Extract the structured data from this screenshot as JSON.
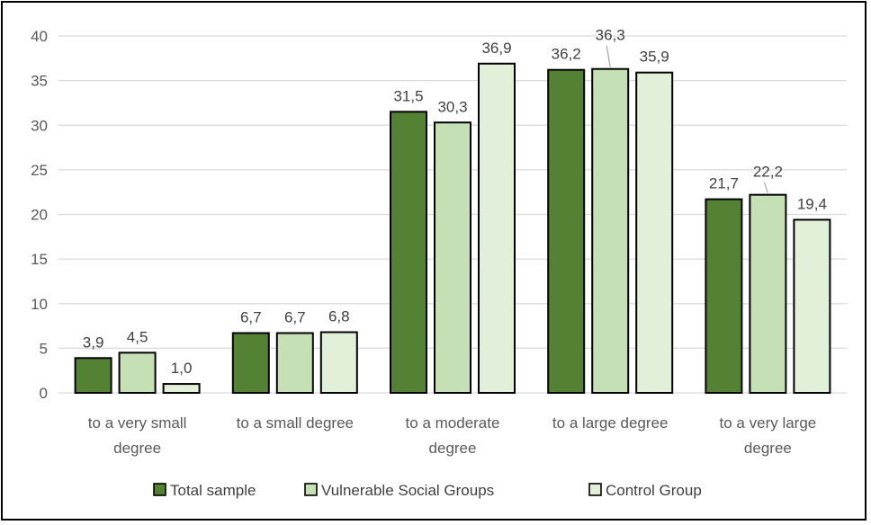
{
  "chart_data": {
    "type": "bar",
    "title": "",
    "xlabel": "",
    "ylabel": "",
    "ylim": [
      0,
      40
    ],
    "yticks": [
      0,
      5,
      10,
      15,
      20,
      25,
      30,
      35,
      40
    ],
    "grid": true,
    "legend_position": "bottom",
    "categories": [
      [
        "to a very small",
        "degree"
      ],
      [
        "to a small degree"
      ],
      [
        "to a moderate",
        "degree"
      ],
      [
        "to a large degree"
      ],
      [
        "to a very large",
        "degree"
      ]
    ],
    "series": [
      {
        "name": "Total sample",
        "color": "#548235",
        "values": [
          3.9,
          6.7,
          31.5,
          36.2,
          21.7
        ],
        "labels": [
          "3,9",
          "6,7",
          "31,5",
          "36,2",
          "21,7"
        ]
      },
      {
        "name": "Vulnerable Social Groups",
        "color": "#c5e0b4",
        "values": [
          4.5,
          6.7,
          30.3,
          36.3,
          22.2
        ],
        "labels": [
          "4,5",
          "6,7",
          "30,3",
          "36,3",
          "22,2"
        ]
      },
      {
        "name": "Control Group",
        "color": "#e2f0d9",
        "values": [
          1.0,
          6.8,
          36.9,
          35.9,
          19.4
        ],
        "labels": [
          "1,0",
          "6,8",
          "36,9",
          "35,9",
          "19,4"
        ]
      }
    ]
  }
}
